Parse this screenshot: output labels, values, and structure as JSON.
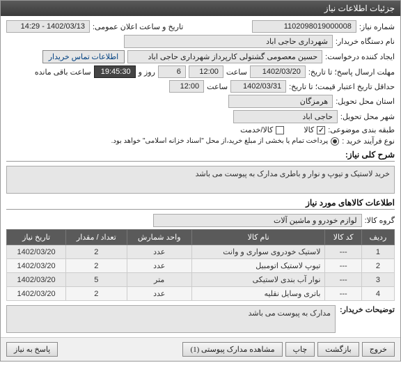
{
  "window": {
    "title": "جزئیات اطلاعات نیاز"
  },
  "fields": {
    "need_no_label": "شماره نیاز:",
    "need_no": "1102098019000008",
    "announce_label": "تاریخ و ساعت اعلان عمومی:",
    "announce_value": "1402/03/13 - 14:29",
    "buyer_org_label": "نام دستگاه خریدار:",
    "buyer_org": "شهرداری حاجی اباد",
    "requester_label": "ایجاد کننده درخواست:",
    "requester": "حسین معصومی گشتولی کارپرداز شهرداری حاجی اباد",
    "contact_btn": "اطلاعات تماس خریدار",
    "deadline_label": "مهلت ارسال پاسخ؛ تا تاریخ:",
    "deadline_date": "1402/03/20",
    "saat": "ساعت",
    "deadline_time": "12:00",
    "rooz_va": "روز و",
    "remain_days": "6",
    "remain_time": "19:45:30",
    "remain_suffix": "ساعت باقی مانده",
    "min_credit_label": "حداقل تاریخ اعتبار قیمت؛ تا تاریخ:",
    "min_credit_date": "1402/03/31",
    "min_credit_time": "12:00",
    "deliver_province_label": "استان محل تحویل:",
    "deliver_province": "هرمزگان",
    "deliver_city_label": "شهر محل تحویل:",
    "deliver_city": "حاجی اباد",
    "subject_cls_label": "طبقه بندی موضوعی:",
    "cls_goods": "کالا",
    "cls_service": "کالا/خدمت",
    "purchase_type_label": "نوع فرآیند خرید :",
    "purchase_note": "پرداخت تمام یا بخشی از مبلغ خرید،از محل \"اسناد خزانه اسلامی\" خواهد بود."
  },
  "summary": {
    "header": "شرح کلی نیاز:",
    "text": "خرید لاستیک و تیوپ و نوار و باطری مدارک به پیوست می باشد"
  },
  "items_section": {
    "header": "اطلاعات کالاهای مورد نیاز",
    "group_label": "گروه کالا:",
    "group_value": "لوازم خودرو و ماشین آلات"
  },
  "table": {
    "headers": [
      "ردیف",
      "کد کالا",
      "نام کالا",
      "واحد شمارش",
      "تعداد / مقدار",
      "تاریخ نیاز"
    ],
    "rows": [
      [
        "1",
        "---",
        "لاستیک خودروی سواری و وانت",
        "عدد",
        "2",
        "1402/03/20"
      ],
      [
        "2",
        "---",
        "تیوپ لاستیک اتومبیل",
        "عدد",
        "2",
        "1402/03/20"
      ],
      [
        "3",
        "---",
        "نوار آب بندی لاستیکی",
        "متر",
        "5",
        "1402/03/20"
      ],
      [
        "4",
        "---",
        "باتری وسایل نقلیه",
        "عدد",
        "2",
        "1402/03/20"
      ]
    ]
  },
  "buyer_notes": {
    "label": "توضیحات خریدار:",
    "text": "مدارک به پیوست می باشد"
  },
  "footer": {
    "exit": "خروج",
    "back": "بازگشت",
    "print": "چاپ",
    "attachments": "مشاهده مدارک پیوستی (1)",
    "respond": "پاسخ به نیاز"
  },
  "colors": {
    "header_bg": "#4a4a4a",
    "field_bg": "#e6e6e6",
    "dark_field_bg": "#444444",
    "table_header_bg": "#5a5a5a"
  }
}
